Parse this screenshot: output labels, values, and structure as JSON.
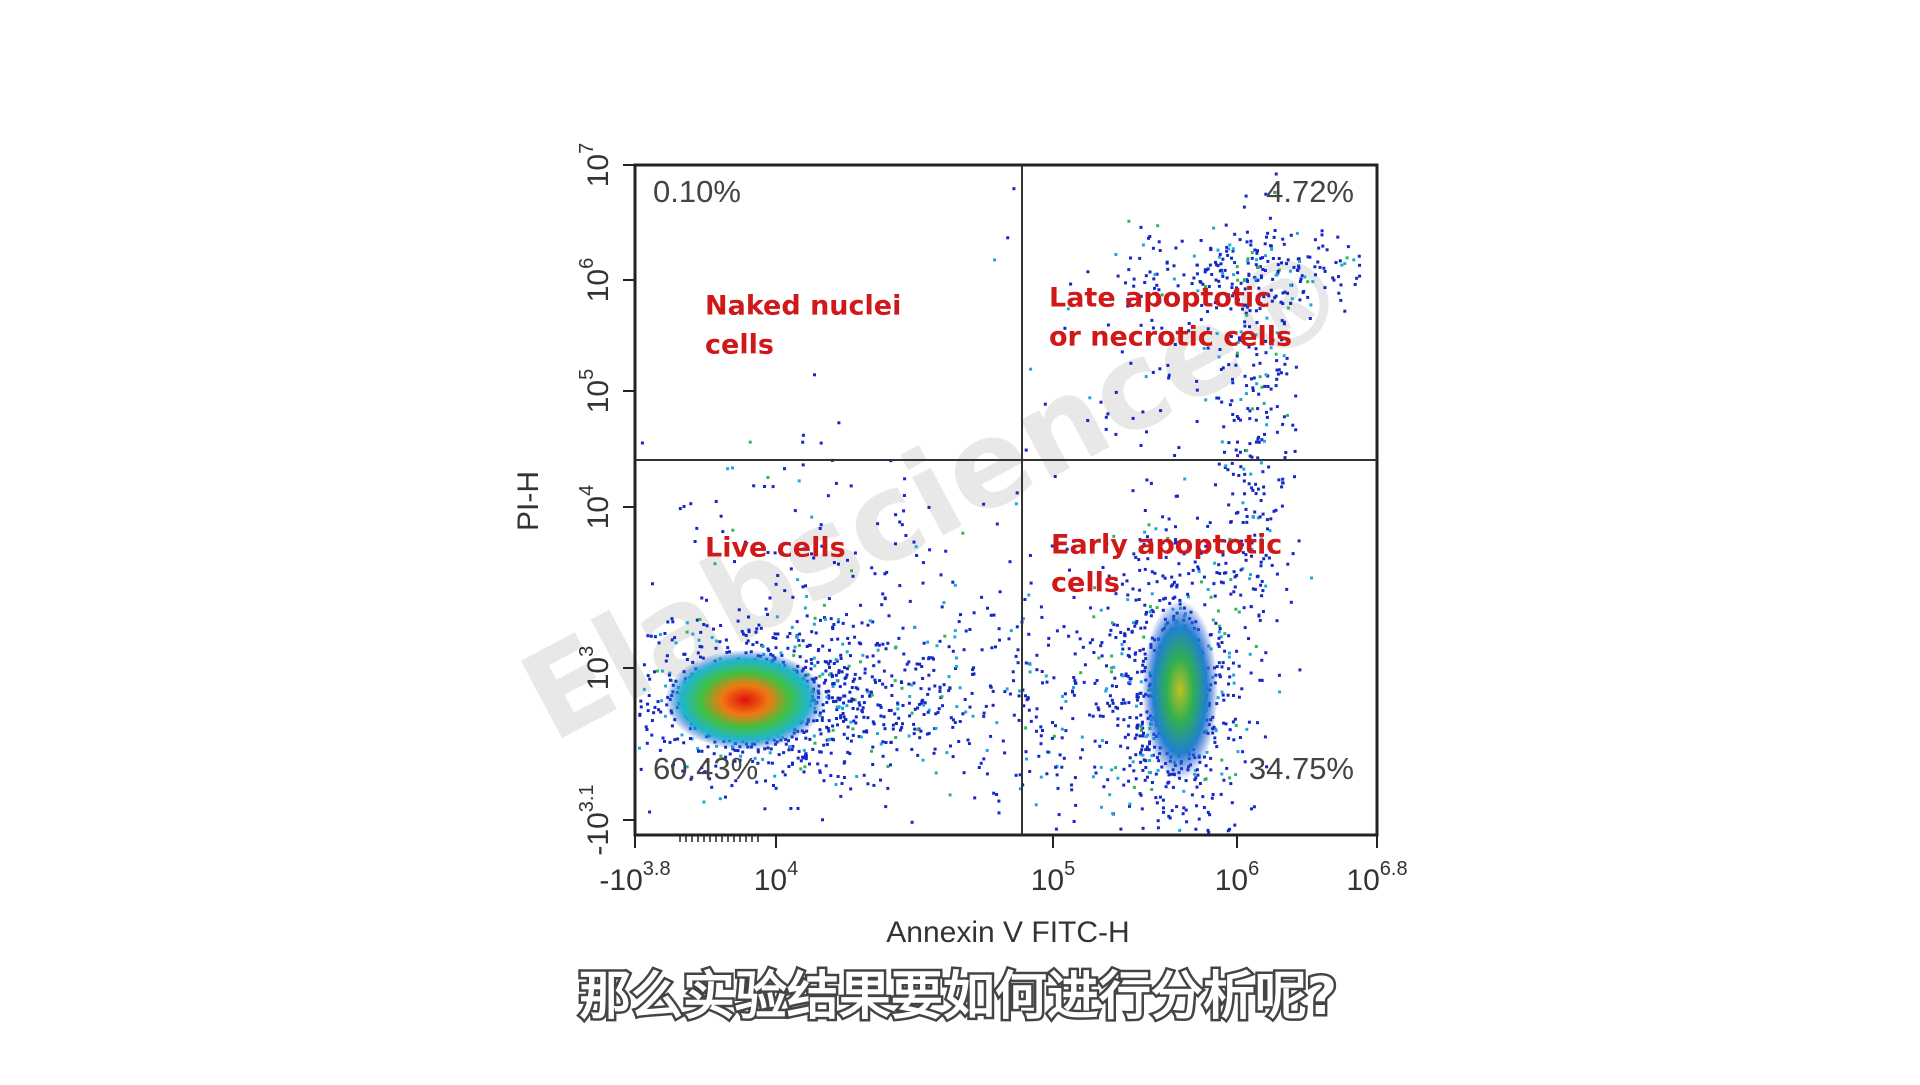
{
  "plot": {
    "y_axis_title": "PI-H",
    "x_axis_title": "Annexin V FITC-H",
    "watermark": "Elabscience®",
    "yticks": [
      {
        "base": "10",
        "exp": "7"
      },
      {
        "base": "10",
        "exp": "6"
      },
      {
        "base": "10",
        "exp": "5"
      },
      {
        "base": "10",
        "exp": "4"
      },
      {
        "base": "10",
        "exp": "3"
      },
      {
        "base": "-10",
        "exp": "3.1"
      }
    ],
    "xticks": [
      {
        "base": "-10",
        "exp": "3.8"
      },
      {
        "base": "10",
        "exp": "4"
      },
      {
        "base": "10",
        "exp": "5"
      },
      {
        "base": "10",
        "exp": "6"
      },
      {
        "base": "10",
        "exp": "6.8"
      }
    ],
    "quadrants": [
      {
        "percent": "0.10%",
        "label": [
          "Naked nuclei",
          "cells"
        ]
      },
      {
        "percent": "4.72%",
        "label": [
          "Late apoptotic",
          "or necrotic cells"
        ]
      },
      {
        "percent": "60.43%",
        "label": [
          "Live cells"
        ]
      },
      {
        "percent": "34.75%",
        "label": [
          "Early apoptotic",
          "cells"
        ]
      }
    ]
  },
  "subtitle": "那么实验结果要如何进行分析呢?"
}
